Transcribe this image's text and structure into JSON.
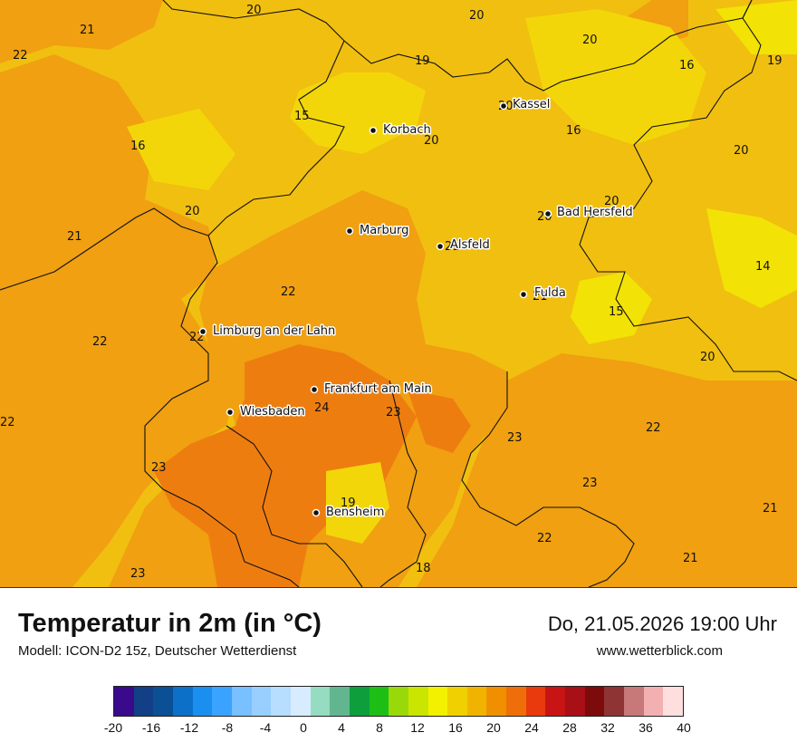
{
  "map": {
    "temp_labels": [
      "20",
      "21",
      "22",
      "20",
      "19",
      "20",
      "16",
      "19",
      "15",
      "16",
      "20",
      "16",
      "20",
      "20",
      "21",
      "20",
      "14",
      "15",
      "22",
      "22",
      "20",
      "22",
      "24",
      "23",
      "22",
      "23",
      "23",
      "23",
      "19",
      "21",
      "22",
      "21",
      "23",
      "18"
    ],
    "cities": [
      {
        "name": "Kassel",
        "icon": "city-dot"
      },
      {
        "name": "Korbach",
        "icon": "city-dot"
      },
      {
        "name": "Bad Hersfeld",
        "icon": "city-dot"
      },
      {
        "name": "Marburg",
        "icon": "city-dot"
      },
      {
        "name": "Alsfeld",
        "icon": "city-dot"
      },
      {
        "name": "Fulda",
        "icon": "city-dot"
      },
      {
        "name": "Limburg an der Lahn",
        "icon": "city-dot"
      },
      {
        "name": "Frankfurt am Main",
        "icon": "city-dot"
      },
      {
        "name": "Wiesbaden",
        "icon": "city-dot"
      },
      {
        "name": "Bensheim",
        "icon": "city-dot"
      }
    ]
  },
  "footer": {
    "title": "Temperatur in 2m (in °C)",
    "model": "Modell: ICON-D2 15z, Deutscher Wetterdienst",
    "datetime": "Do, 21.05.2026 19:00 Uhr",
    "website": "www.wetterblick.com"
  },
  "legend": {
    "colors": [
      "#3a0a8c",
      "#123f86",
      "#0b4f94",
      "#0c70c8",
      "#1a8ff0",
      "#3aa3ff",
      "#78c0ff",
      "#98cfff",
      "#b7ddff",
      "#d8ecff",
      "#96dcc0",
      "#62b68f",
      "#0e9f3c",
      "#1dbf17",
      "#99d90a",
      "#c9e500",
      "#f3f000",
      "#f0d000",
      "#f0b400",
      "#f09000",
      "#ee6f09",
      "#e83a0c",
      "#c81414",
      "#a90f17",
      "#7e0b0b",
      "#8e3434",
      "#c77878",
      "#f2b0b0",
      "#ffdede"
    ],
    "ticks": [
      "-20",
      "-16",
      "-12",
      "-8",
      "-4",
      "0",
      "4",
      "8",
      "12",
      "16",
      "20",
      "24",
      "28",
      "32",
      "36",
      "40"
    ]
  }
}
